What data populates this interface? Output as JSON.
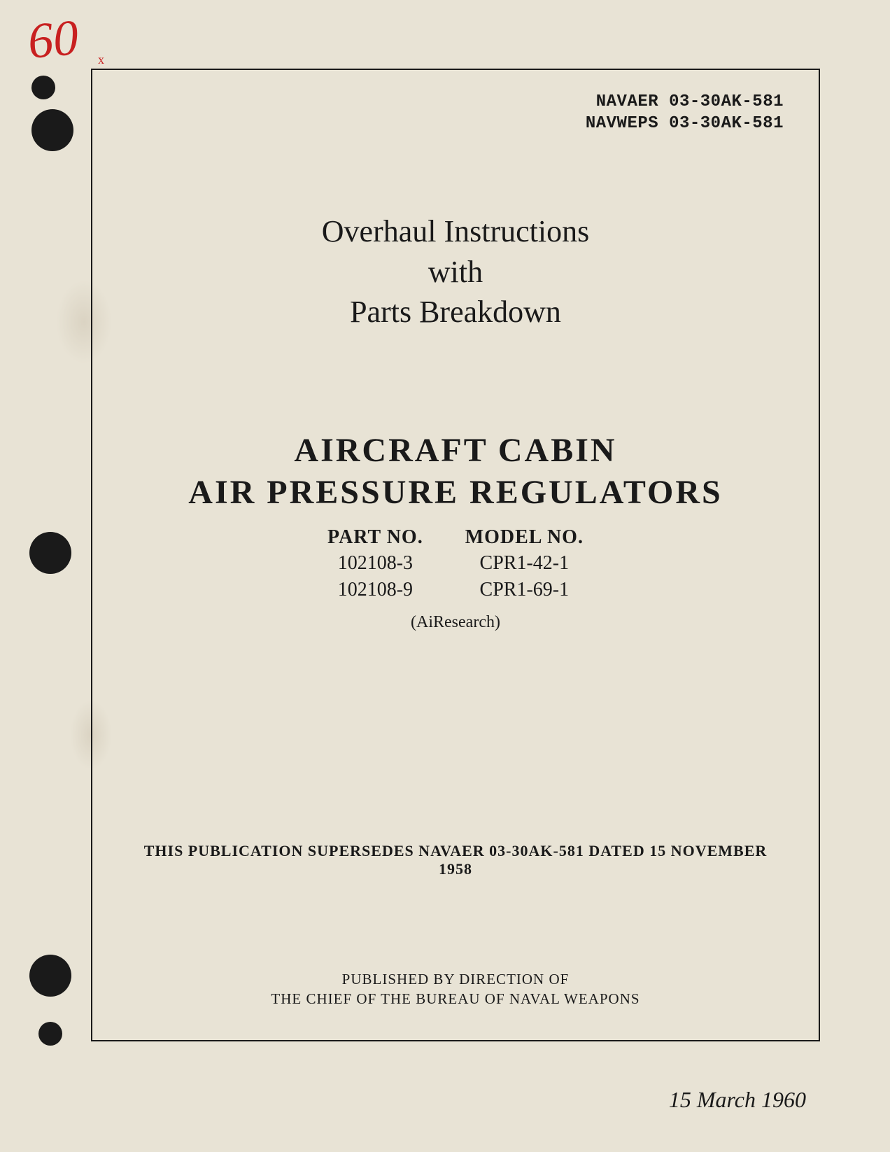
{
  "handwritten": {
    "number": "60",
    "mark": "x"
  },
  "docCodes": {
    "line1": "NAVAER 03-30AK-581",
    "line2": "NAVWEPS 03-30AK-581"
  },
  "title": {
    "line1": "Overhaul Instructions",
    "line2": "with",
    "line3": "Parts Breakdown"
  },
  "mainTitle": {
    "line1": "AIRCRAFT CABIN",
    "line2": "AIR PRESSURE REGULATORS"
  },
  "partsTable": {
    "partHeader": "PART NO.",
    "modelHeader": "MODEL NO.",
    "part1": "102108-3",
    "part2": "102108-9",
    "model1": "CPR1-42-1",
    "model2": "CPR1-69-1"
  },
  "manufacturer": "(AiResearch)",
  "supersedes": "THIS PUBLICATION SUPERSEDES NAVAER 03-30AK-581 DATED 15 NOVEMBER 1958",
  "publisher": {
    "line1": "PUBLISHED BY DIRECTION OF",
    "line2": "THE CHIEF OF THE BUREAU OF NAVAL WEAPONS"
  },
  "date": "15 March 1960",
  "colors": {
    "background": "#e8e3d5",
    "text": "#1a1a1a",
    "handwritten": "#c82020",
    "border": "#1a1a1a"
  },
  "typography": {
    "bodyFont": "Georgia, Times New Roman, serif",
    "codeFont": "Courier New, monospace",
    "titleFontSize": 44,
    "mainTitleFontSize": 48,
    "codeFontSize": 24,
    "partsFontSize": 28,
    "supersedesSize": 22,
    "publisherSize": 21,
    "dateSize": 32
  }
}
